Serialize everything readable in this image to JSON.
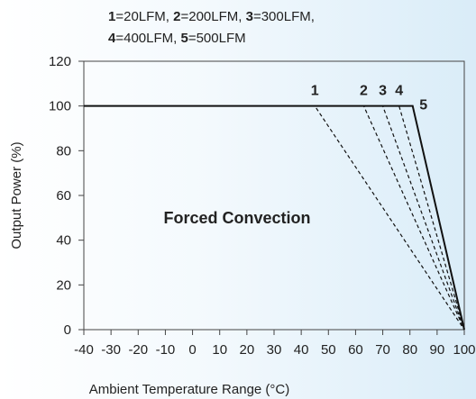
{
  "legend": {
    "line1": [
      {
        "key": "1",
        "value": "=20LFM, "
      },
      {
        "key": "2",
        "value": "=200LFM, "
      },
      {
        "key": "3",
        "value": "=300LFM,"
      }
    ],
    "line2": [
      {
        "key": "4",
        "value": "=400LFM, "
      },
      {
        "key": "5",
        "value": "=500LFM"
      }
    ]
  },
  "chart_data": {
    "type": "line",
    "xlabel": "Ambient Temperature Range (°C)",
    "ylabel": "Output Power (%)",
    "annotation": "Forced Convection",
    "xlim": [
      -40,
      100
    ],
    "ylim": [
      0,
      120
    ],
    "xticks": [
      -40,
      -30,
      -20,
      -10,
      0,
      10,
      20,
      30,
      40,
      50,
      60,
      70,
      80,
      90,
      100
    ],
    "yticks": [
      0,
      20,
      40,
      60,
      80,
      100,
      120
    ],
    "grid": false,
    "series": [
      {
        "name": "1",
        "points": [
          [
            -40,
            100
          ],
          [
            45,
            100
          ],
          [
            100,
            0
          ]
        ],
        "style": "dashed"
      },
      {
        "name": "2",
        "points": [
          [
            -40,
            100
          ],
          [
            63,
            100
          ],
          [
            100,
            0
          ]
        ],
        "style": "dashed"
      },
      {
        "name": "3",
        "points": [
          [
            -40,
            100
          ],
          [
            70,
            100
          ],
          [
            100,
            0
          ]
        ],
        "style": "dashed"
      },
      {
        "name": "4",
        "points": [
          [
            -40,
            100
          ],
          [
            76,
            100
          ],
          [
            100,
            0
          ]
        ],
        "style": "dashed"
      },
      {
        "name": "5",
        "points": [
          [
            -40,
            100
          ],
          [
            81,
            100
          ],
          [
            100,
            0
          ]
        ],
        "style": "solid"
      }
    ],
    "colors": {
      "line": "#111111",
      "axis": "#444444",
      "text": "#222222"
    }
  }
}
